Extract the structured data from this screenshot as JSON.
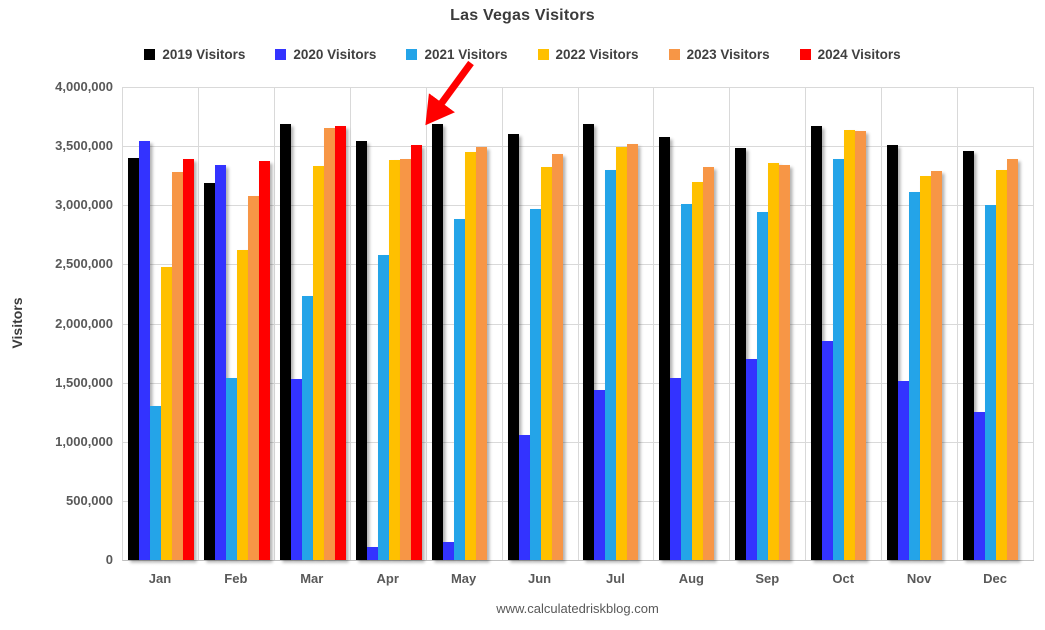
{
  "chart_data": {
    "type": "bar",
    "title": "Las Vegas Visitors",
    "ylabel": "Visitors",
    "footer": "www.calculatedriskblog.com",
    "categories": [
      "Jan",
      "Feb",
      "Mar",
      "Apr",
      "May",
      "Jun",
      "Jul",
      "Aug",
      "Sep",
      "Oct",
      "Nov",
      "Dec"
    ],
    "ylim": [
      0,
      4000000
    ],
    "yticks": [
      {
        "value": 0,
        "label": "0"
      },
      {
        "value": 500000,
        "label": "500,000"
      },
      {
        "value": 1000000,
        "label": "1,000,000"
      },
      {
        "value": 1500000,
        "label": "1,500,000"
      },
      {
        "value": 2000000,
        "label": "2,000,000"
      },
      {
        "value": 2500000,
        "label": "2,500,000"
      },
      {
        "value": 3000000,
        "label": "3,000,000"
      },
      {
        "value": 3500000,
        "label": "3,500,000"
      },
      {
        "value": 4000000,
        "label": "4,000,000"
      }
    ],
    "grid": true,
    "legend_position": "top-center",
    "series": [
      {
        "name": "2019 Visitors",
        "color": "#000000",
        "values": [
          3400000,
          3190000,
          3690000,
          3540000,
          3690000,
          3600000,
          3690000,
          3580000,
          3480000,
          3670000,
          3510000,
          3460000
        ]
      },
      {
        "name": "2020 Visitors",
        "color": "#3333ff",
        "values": [
          3540000,
          3340000,
          1530000,
          110000,
          150000,
          1060000,
          1440000,
          1540000,
          1700000,
          1850000,
          1510000,
          1250000
        ]
      },
      {
        "name": "2021 Visitors",
        "color": "#24a4e8",
        "values": [
          1300000,
          1540000,
          2230000,
          2580000,
          2880000,
          2970000,
          3300000,
          3010000,
          2940000,
          3390000,
          3110000,
          3000000
        ]
      },
      {
        "name": "2022 Visitors",
        "color": "#ffc000",
        "values": [
          2480000,
          2620000,
          3330000,
          3380000,
          3450000,
          3320000,
          3490000,
          3200000,
          3360000,
          3640000,
          3250000,
          3300000
        ]
      },
      {
        "name": "2023 Visitors",
        "color": "#f79646",
        "values": [
          3280000,
          3080000,
          3650000,
          3390000,
          3490000,
          3430000,
          3520000,
          3320000,
          3340000,
          3630000,
          3290000,
          3390000
        ]
      },
      {
        "name": "2024 Visitors",
        "color": "#ff0000",
        "values": [
          3390000,
          3370000,
          3670000,
          3510000,
          null,
          null,
          null,
          null,
          null,
          null,
          null,
          null
        ]
      }
    ],
    "annotation": {
      "type": "arrow",
      "color": "#ff0000",
      "target": "Apr 2024 bar",
      "tail": [
        471,
        63
      ],
      "tip": [
        430,
        119
      ]
    }
  }
}
